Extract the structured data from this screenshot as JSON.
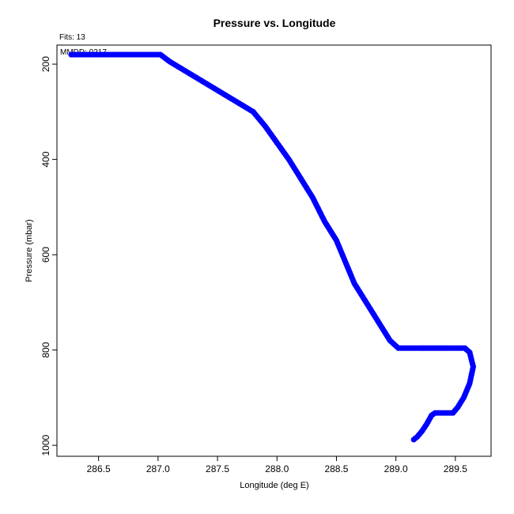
{
  "chart_data": {
    "type": "scatter",
    "title": "Pressure vs. Longitude",
    "xlabel": "Longitude (deg E)",
    "ylabel": "Pressure (mbar)",
    "annotations": {
      "fits": "Fits: 13",
      "mmdd": "MMDD: 0217"
    },
    "xlim": [
      286.15,
      289.8
    ],
    "ylim": [
      1023,
      160
    ],
    "y_reversed": true,
    "grid": false,
    "x_ticks": [
      {
        "value": 286.5,
        "label": "286.5"
      },
      {
        "value": 287.0,
        "label": "287.0"
      },
      {
        "value": 287.5,
        "label": "287.5"
      },
      {
        "value": 288.0,
        "label": "288.0"
      },
      {
        "value": 288.5,
        "label": "288.5"
      },
      {
        "value": 289.0,
        "label": "289.0"
      },
      {
        "value": 289.5,
        "label": "289.5"
      }
    ],
    "y_ticks": [
      {
        "value": 200,
        "label": "200"
      },
      {
        "value": 400,
        "label": "400"
      },
      {
        "value": 600,
        "label": "600"
      },
      {
        "value": 800,
        "label": "800"
      },
      {
        "value": 1000,
        "label": "1000"
      }
    ],
    "marker_color": "#0000ff",
    "series": [
      {
        "points": [
          [
            289.15,
            988
          ],
          [
            289.18,
            982
          ],
          [
            289.22,
            970
          ],
          [
            289.26,
            955
          ],
          [
            289.3,
            937
          ],
          [
            289.33,
            932
          ],
          [
            289.48,
            932
          ],
          [
            289.52,
            920
          ],
          [
            289.57,
            900
          ],
          [
            289.62,
            870
          ],
          [
            289.65,
            835
          ],
          [
            289.62,
            805
          ],
          [
            289.58,
            796
          ],
          [
            289.4,
            796
          ],
          [
            289.2,
            796
          ],
          [
            289.02,
            796
          ],
          [
            288.95,
            780
          ],
          [
            288.85,
            740
          ],
          [
            288.75,
            700
          ],
          [
            288.65,
            660
          ],
          [
            288.6,
            630
          ],
          [
            288.5,
            570
          ],
          [
            288.4,
            530
          ],
          [
            288.3,
            480
          ],
          [
            288.2,
            440
          ],
          [
            288.1,
            400
          ],
          [
            288.0,
            365
          ],
          [
            287.9,
            330
          ],
          [
            287.8,
            300
          ],
          [
            287.7,
            285
          ],
          [
            287.6,
            270
          ],
          [
            287.5,
            255
          ],
          [
            287.4,
            240
          ],
          [
            287.3,
            225
          ],
          [
            287.2,
            210
          ],
          [
            287.1,
            195
          ],
          [
            287.02,
            180
          ],
          [
            286.8,
            180
          ],
          [
            286.6,
            180
          ],
          [
            286.4,
            180
          ],
          [
            286.27,
            180
          ]
        ]
      }
    ]
  }
}
